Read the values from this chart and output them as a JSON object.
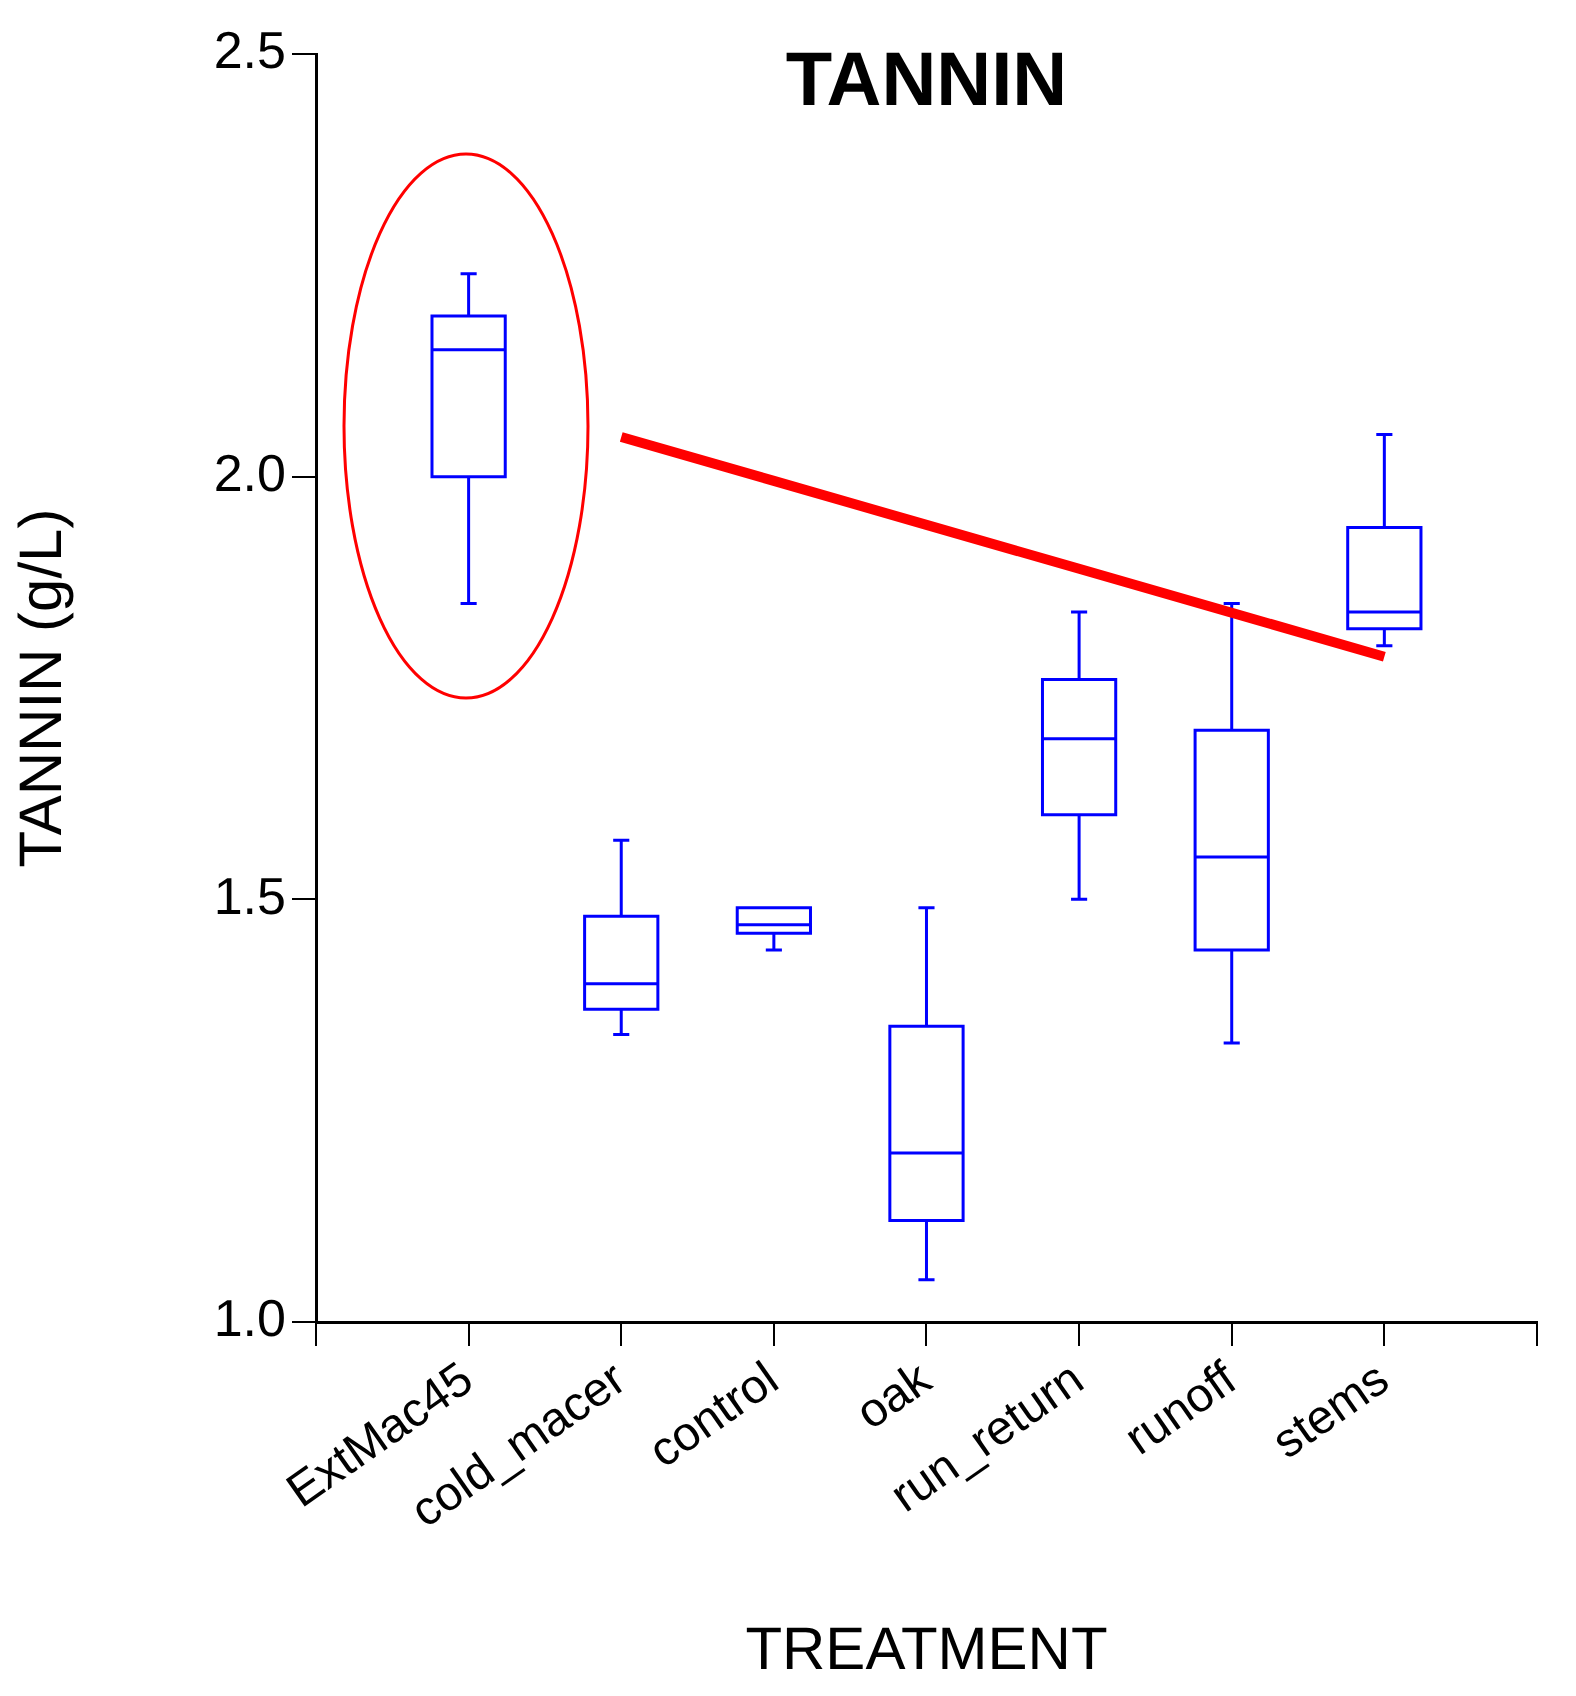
{
  "chart_data": {
    "type": "box",
    "title": "TANNIN",
    "xlabel": "TREATMENT",
    "ylabel": "TANNIN (g/L)",
    "color": "#0000ff",
    "categories": [
      "ExtMac45",
      "cold_macer",
      "control",
      "oak",
      "run_return",
      "runoff",
      "stems"
    ],
    "boxes": [
      {
        "low": 1.85,
        "q1": 2.0,
        "median": 2.15,
        "q3": 2.19,
        "high": 2.24
      },
      {
        "low": 1.34,
        "q1": 1.37,
        "median": 1.4,
        "q3": 1.48,
        "high": 1.57
      },
      {
        "low": 1.44,
        "q1": 1.46,
        "median": 1.47,
        "q3": 1.49,
        "high": 1.49
      },
      {
        "low": 1.05,
        "q1": 1.12,
        "median": 1.2,
        "q3": 1.35,
        "high": 1.49
      },
      {
        "low": 1.5,
        "q1": 1.6,
        "median": 1.69,
        "q3": 1.76,
        "high": 1.84
      },
      {
        "low": 1.33,
        "q1": 1.44,
        "median": 1.55,
        "q3": 1.7,
        "high": 1.85
      },
      {
        "low": 1.8,
        "q1": 1.82,
        "median": 1.84,
        "q3": 1.94,
        "high": 2.05
      }
    ],
    "series": [
      {
        "type": "line",
        "color": "#ff0000",
        "values": [
          null,
          2.047,
          1.995,
          1.943,
          1.891,
          1.839,
          1.787
        ]
      }
    ],
    "ylim": [
      1,
      2.5
    ],
    "yticks": [
      {
        "value": 1,
        "label": "1.0"
      },
      {
        "value": 1.5,
        "label": "1.5"
      },
      {
        "value": 2,
        "label": "2.0"
      },
      {
        "value": 2.5,
        "label": "2.5"
      }
    ]
  }
}
